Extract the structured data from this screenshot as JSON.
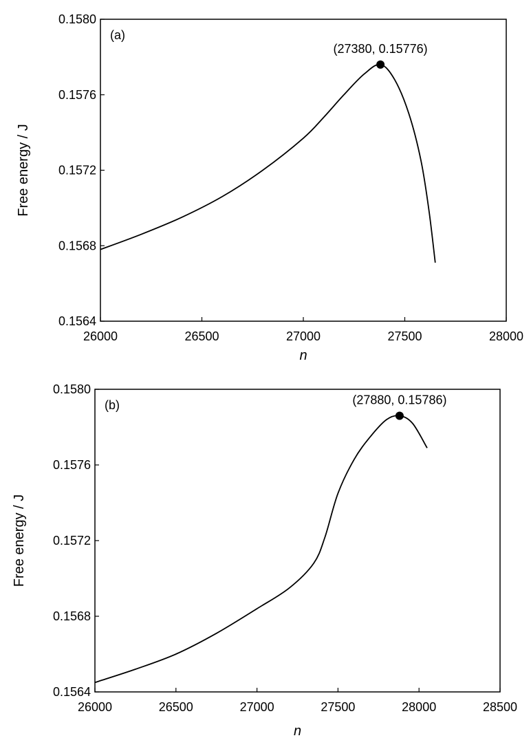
{
  "chart_data": [
    {
      "type": "line",
      "panel_label": "(a)",
      "xlabel": "n",
      "ylabel": "Free energy / J",
      "xlim": [
        26000,
        28000
      ],
      "ylim": [
        0.1564,
        0.158
      ],
      "xticks": [
        "26000",
        "26500",
        "27000",
        "27500",
        "28000"
      ],
      "yticks": [
        "0.1564",
        "0.1568",
        "0.1572",
        "0.1576",
        "0.1580"
      ],
      "grid": false,
      "series": [
        {
          "x": [
            26000,
            26200,
            26400,
            26600,
            26800,
            27000,
            27100,
            27200,
            27300,
            27380,
            27450,
            27520,
            27580,
            27620,
            27650
          ],
          "y": [
            0.15678,
            0.15686,
            0.15695,
            0.15706,
            0.1572,
            0.15737,
            0.15748,
            0.1576,
            0.15771,
            0.15776,
            0.15768,
            0.1575,
            0.15725,
            0.15698,
            0.15671
          ]
        }
      ],
      "annotations": [
        {
          "x": 27380,
          "y": 0.15776,
          "text": "(27380,  0.15776)"
        }
      ]
    },
    {
      "type": "line",
      "panel_label": "(b)",
      "xlabel": "n",
      "ylabel": "Free energy / J",
      "xlim": [
        26000,
        28500
      ],
      "ylim": [
        0.1564,
        0.158
      ],
      "xticks": [
        "26000",
        "26500",
        "27000",
        "27500",
        "28000",
        "28500"
      ],
      "yticks": [
        "0.1564",
        "0.1568",
        "0.1572",
        "0.1576",
        "0.1580"
      ],
      "grid": false,
      "series": [
        {
          "x": [
            26000,
            26250,
            26500,
            26750,
            27000,
            27200,
            27350,
            27420,
            27500,
            27600,
            27700,
            27800,
            27880,
            27960,
            28050
          ],
          "y": [
            0.15645,
            0.15652,
            0.1566,
            0.15671,
            0.15684,
            0.15695,
            0.15708,
            0.15722,
            0.15745,
            0.15763,
            0.15775,
            0.15784,
            0.15786,
            0.15782,
            0.15769
          ]
        }
      ],
      "annotations": [
        {
          "x": 27880,
          "y": 0.15786,
          "text": "(27880,  0.15786)"
        }
      ]
    }
  ]
}
